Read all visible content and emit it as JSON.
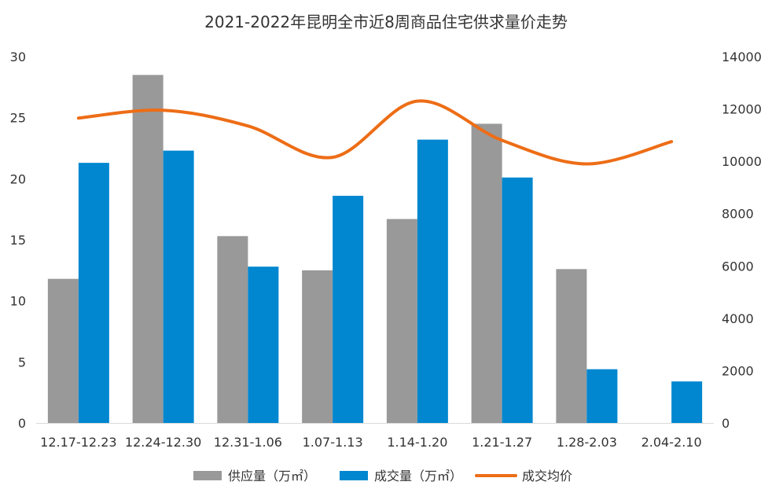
{
  "chart_data": {
    "type": "bar",
    "title": "2021-2022年昆明全市近8周商品住宅供求量价走势",
    "categories": [
      "12.17-12.23",
      "12.24-12.30",
      "12.31-1.06",
      "1.07-1.13",
      "1.14-1.20",
      "1.21-1.27",
      "1.28-2.03",
      "2.04-2.10"
    ],
    "series": [
      {
        "name": "供应量（万㎡）",
        "type": "bar",
        "axis": "left",
        "color": "#999999",
        "values": [
          11.8,
          28.5,
          15.3,
          12.5,
          16.7,
          24.5,
          12.6,
          0
        ]
      },
      {
        "name": "成交量（万㎡）",
        "type": "bar",
        "axis": "left",
        "color": "#0087d0",
        "values": [
          21.3,
          22.3,
          12.8,
          18.6,
          23.2,
          20.1,
          4.4,
          3.4
        ]
      },
      {
        "name": "成交均价",
        "type": "line",
        "axis": "right",
        "color": "#ed6d16",
        "values": [
          11650,
          11950,
          11350,
          10150,
          12300,
          10800,
          9900,
          10750
        ]
      }
    ],
    "y_left": {
      "min": 0,
      "max": 30,
      "ticks": [
        0,
        5,
        10,
        15,
        20,
        25,
        30
      ]
    },
    "y_right": {
      "min": 0,
      "max": 14000,
      "ticks": [
        0,
        2000,
        4000,
        6000,
        8000,
        10000,
        12000,
        14000
      ]
    },
    "grid": false,
    "legend_position": "bottom",
    "xlabel": "",
    "ylabel": ""
  }
}
